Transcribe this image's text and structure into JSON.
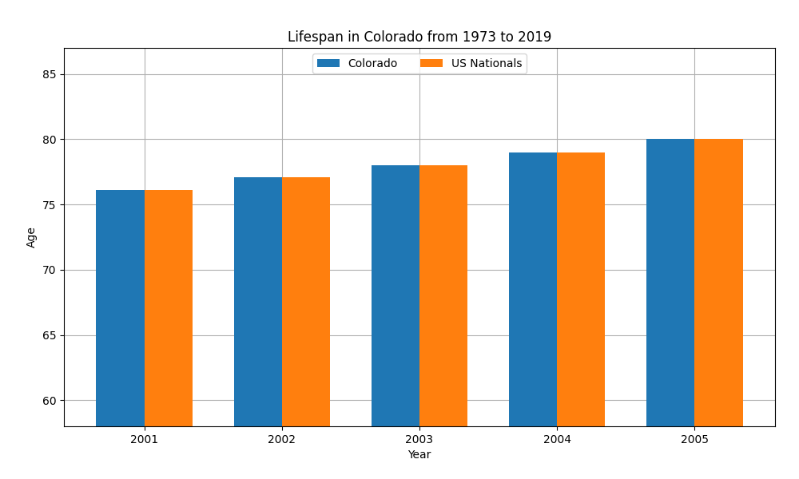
{
  "chart_data": {
    "type": "bar",
    "title": "Lifespan in Colorado from 1973 to 2019",
    "x_label": "Year",
    "y_label": "Age",
    "categories": [
      "2001",
      "2002",
      "2003",
      "2004",
      "2005"
    ],
    "series": [
      {
        "name": "Colorado",
        "values": [
          76.1,
          77.1,
          78.0,
          79.0,
          80.0
        ]
      },
      {
        "name": "US Nationals",
        "values": [
          76.1,
          77.1,
          78.0,
          79.0,
          80.0
        ]
      }
    ],
    "ylim": [
      58,
      87
    ],
    "yticks": [
      60,
      65,
      70,
      75,
      80,
      85
    ],
    "grid": true,
    "legend": "upper center"
  }
}
